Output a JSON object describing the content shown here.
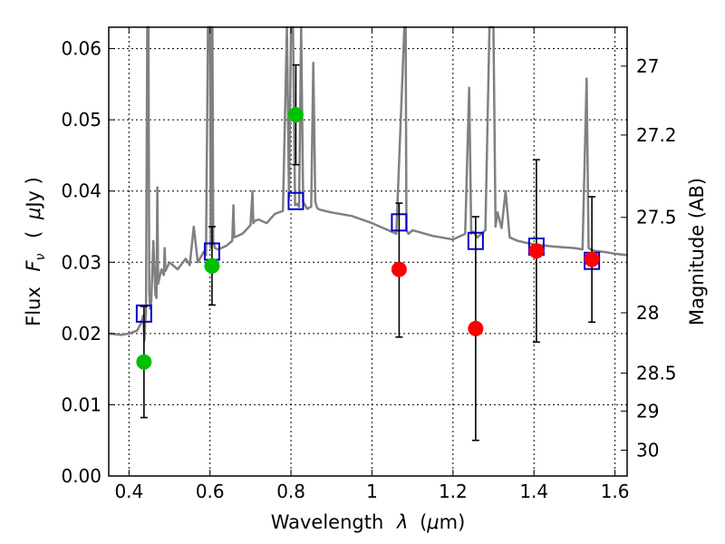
{
  "chart_data": {
    "type": "scatter",
    "xlabel_prefix": "Wavelength",
    "xlabel_var": "λ",
    "xlabel_unit_open": "(",
    "xlabel_unit_mu": "μ",
    "xlabel_unit_rest": "m)",
    "ylabel_prefix": "Flux",
    "ylabel_var": "F",
    "ylabel_sub": "ν",
    "ylabel_unit_open": "(",
    "ylabel_unit_mu": "μ",
    "ylabel_unit_rest": "Jy )",
    "y2label": "Magnitude (AB)",
    "xlim": [
      0.35,
      1.63
    ],
    "ylim": [
      0.0,
      0.063
    ],
    "x_ticks": [
      0.4,
      0.6,
      0.8,
      1.0,
      1.2,
      1.4,
      1.6
    ],
    "x_tick_labels": [
      "0.4",
      "0.6",
      "0.8",
      "1",
      "1.2",
      "1.4",
      "1.6"
    ],
    "y_ticks": [
      0.0,
      0.01,
      0.02,
      0.03,
      0.04,
      0.05,
      0.06
    ],
    "y_tick_labels": [
      "0.00",
      "0.01",
      "0.02",
      "0.03",
      "0.04",
      "0.05",
      "0.06"
    ],
    "y2_ticks": [
      27,
      27.2,
      27.5,
      28,
      28.5,
      29,
      30
    ],
    "y2_tick_labels": [
      "27",
      "27.2",
      "27.5",
      "28",
      "28.5",
      "29",
      "30"
    ],
    "grid": true,
    "colors": {
      "model": "#808080",
      "green": "#00c000",
      "red": "#ff0000",
      "model_box": "#0000cc",
      "errorbar": "#000000"
    },
    "model_spectrum": {
      "x": [
        0.35,
        0.38,
        0.4,
        0.42,
        0.43,
        0.435,
        0.438,
        0.44,
        0.442,
        0.445,
        0.448,
        0.45,
        0.452,
        0.455,
        0.46,
        0.465,
        0.468,
        0.47,
        0.472,
        0.48,
        0.486,
        0.488,
        0.49,
        0.5,
        0.52,
        0.54,
        0.55,
        0.56,
        0.57,
        0.58,
        0.585,
        0.59,
        0.595,
        0.6,
        0.602,
        0.604,
        0.606,
        0.608,
        0.61,
        0.612,
        0.62,
        0.64,
        0.655,
        0.658,
        0.66,
        0.68,
        0.7,
        0.705,
        0.707,
        0.71,
        0.72,
        0.74,
        0.76,
        0.78,
        0.79,
        0.795,
        0.8,
        0.805,
        0.81,
        0.815,
        0.82,
        0.825,
        0.83,
        0.835,
        0.84,
        0.85,
        0.855,
        0.86,
        0.865,
        0.87,
        0.9,
        0.95,
        1.0,
        1.04,
        1.06,
        1.08,
        1.083,
        1.085,
        1.09,
        1.1,
        1.15,
        1.2,
        1.23,
        1.24,
        1.245,
        1.25,
        1.26,
        1.28,
        1.29,
        1.3,
        1.305,
        1.31,
        1.32,
        1.33,
        1.34,
        1.36,
        1.4,
        1.45,
        1.5,
        1.52,
        1.53,
        1.535,
        1.54,
        1.55,
        1.58,
        1.6,
        1.63
      ],
      "y": [
        0.02,
        0.0198,
        0.02,
        0.0204,
        0.0215,
        0.0225,
        0.019,
        0.0215,
        0.023,
        0.063,
        0.063,
        0.026,
        0.0235,
        0.0245,
        0.033,
        0.0255,
        0.025,
        0.0405,
        0.027,
        0.029,
        0.0282,
        0.032,
        0.0288,
        0.03,
        0.029,
        0.0305,
        0.0296,
        0.035,
        0.03,
        0.031,
        0.0315,
        0.031,
        0.063,
        0.063,
        0.032,
        0.063,
        0.063,
        0.033,
        0.0325,
        0.032,
        0.0318,
        0.0323,
        0.033,
        0.038,
        0.0335,
        0.034,
        0.0352,
        0.04,
        0.0355,
        0.0358,
        0.036,
        0.0355,
        0.0368,
        0.0372,
        0.063,
        0.039,
        0.063,
        0.063,
        0.038,
        0.0382,
        0.0378,
        0.063,
        0.0385,
        0.038,
        0.0375,
        0.0378,
        0.058,
        0.0385,
        0.0376,
        0.0374,
        0.037,
        0.0365,
        0.0355,
        0.0345,
        0.034,
        0.063,
        0.063,
        0.0345,
        0.034,
        0.0345,
        0.0337,
        0.0332,
        0.034,
        0.0545,
        0.034,
        0.0343,
        0.0335,
        0.0345,
        0.063,
        0.063,
        0.035,
        0.037,
        0.0348,
        0.04,
        0.0335,
        0.033,
        0.0325,
        0.0322,
        0.032,
        0.0318,
        0.0558,
        0.032,
        0.0318,
        0.0316,
        0.0314,
        0.0312,
        0.031
      ]
    },
    "model_points": {
      "x": [
        0.437,
        0.605,
        0.812,
        1.067,
        1.256,
        1.406,
        1.543
      ],
      "y": [
        0.0228,
        0.0315,
        0.0386,
        0.0356,
        0.033,
        0.0322,
        0.0302
      ]
    },
    "series": [
      {
        "color": "green",
        "x": [
          0.437,
          0.605,
          0.812
        ],
        "y": [
          0.016,
          0.0295,
          0.0507
        ],
        "yerr_low": [
          0.0078,
          0.0055,
          0.007
        ],
        "yerr_high": [
          0.0078,
          0.0055,
          0.007
        ]
      },
      {
        "color": "red",
        "x": [
          1.067,
          1.256,
          1.406,
          1.543
        ],
        "y": [
          0.029,
          0.0207,
          0.0316,
          0.0304
        ],
        "yerr_low": [
          0.0095,
          0.0157,
          0.0128,
          0.0088
        ],
        "yerr_high": [
          0.0093,
          0.0157,
          0.0128,
          0.0088
        ]
      }
    ]
  }
}
